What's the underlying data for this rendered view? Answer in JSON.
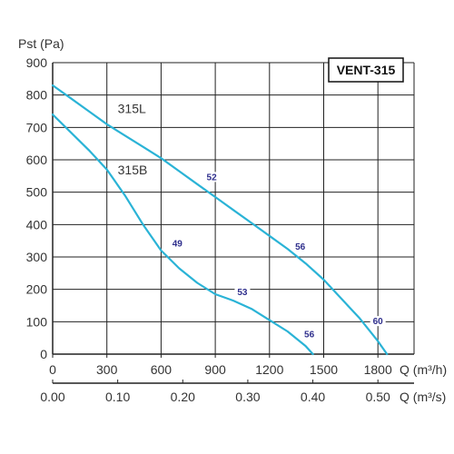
{
  "chart_data": {
    "type": "line",
    "title": "VENT-315",
    "ylabel": "Pst (Pa)",
    "xlabel": "Q (m³/h)",
    "x2label": "Q (m³/s)",
    "xlim": [
      0,
      2000
    ],
    "ylim": [
      0,
      900
    ],
    "xticks": [
      0,
      300,
      600,
      900,
      1200,
      1500,
      1800
    ],
    "yticks": [
      0,
      100,
      200,
      300,
      400,
      500,
      600,
      700,
      800,
      900
    ],
    "x2ticks": [
      {
        "q": 0,
        "label": "0.00"
      },
      {
        "q": 360,
        "label": "0.10"
      },
      {
        "q": 720,
        "label": "0.20"
      },
      {
        "q": 1080,
        "label": "0.30"
      },
      {
        "q": 1440,
        "label": "0.40"
      },
      {
        "q": 1800,
        "label": "0.50"
      }
    ],
    "grid": true,
    "line_color": "#2ab3d6",
    "series": [
      {
        "name": "315L",
        "label_at": {
          "x": 360,
          "y": 745
        },
        "x": [
          0,
          100,
          200,
          300,
          400,
          500,
          600,
          700,
          800,
          900,
          1000,
          1100,
          1200,
          1300,
          1400,
          1500,
          1600,
          1700,
          1800,
          1850
        ],
        "y": [
          830,
          790,
          750,
          710,
          675,
          640,
          605,
          565,
          525,
          485,
          445,
          405,
          365,
          325,
          280,
          230,
          170,
          110,
          40,
          0
        ],
        "point_labels": [
          {
            "x": 880,
            "y": 540,
            "text": "52"
          },
          {
            "x": 1370,
            "y": 325,
            "text": "56"
          },
          {
            "x": 1800,
            "y": 95,
            "text": "60"
          }
        ]
      },
      {
        "name": "315B",
        "label_at": {
          "x": 360,
          "y": 555
        },
        "x": [
          0,
          100,
          200,
          300,
          400,
          500,
          600,
          700,
          800,
          900,
          1000,
          1100,
          1200,
          1300,
          1400,
          1440
        ],
        "y": [
          740,
          685,
          630,
          570,
          490,
          400,
          320,
          265,
          220,
          185,
          165,
          140,
          105,
          70,
          25,
          0
        ],
        "point_labels": [
          {
            "x": 690,
            "y": 335,
            "text": "49"
          },
          {
            "x": 1050,
            "y": 185,
            "text": "53"
          },
          {
            "x": 1420,
            "y": 55,
            "text": "56"
          }
        ]
      }
    ]
  }
}
